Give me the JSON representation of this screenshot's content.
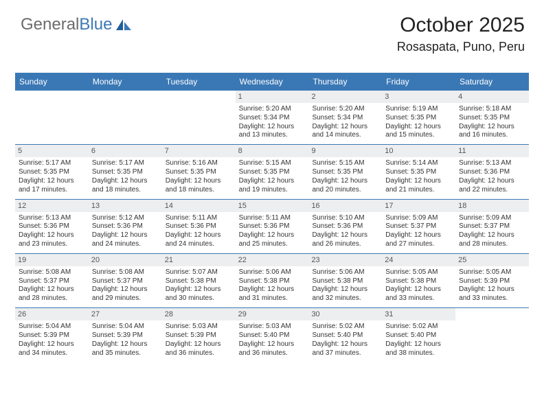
{
  "brand": {
    "part1": "General",
    "part2": "Blue",
    "logo_color": "#3a78b5",
    "text_muted": "#6b6b6b"
  },
  "header": {
    "title": "October 2025",
    "location": "Rosaspata, Puno, Peru"
  },
  "colors": {
    "bar": "#3a78b5",
    "numbg": "#eceef0",
    "text": "#333333",
    "border": "#3a78b5"
  },
  "typography": {
    "title_fontsize": 30,
    "location_fontsize": 18,
    "dow_fontsize": 12,
    "cell_fontsize": 10
  },
  "days_of_week": [
    "Sunday",
    "Monday",
    "Tuesday",
    "Wednesday",
    "Thursday",
    "Friday",
    "Saturday"
  ],
  "layout": {
    "columns": 7,
    "weeks": 5,
    "first_weekday_index": 3
  },
  "cells": [
    {
      "n": "",
      "empty": true
    },
    {
      "n": "",
      "empty": true
    },
    {
      "n": "",
      "empty": true
    },
    {
      "n": "1",
      "sunrise": "5:20 AM",
      "sunset": "5:34 PM",
      "daylight": "12 hours and 13 minutes."
    },
    {
      "n": "2",
      "sunrise": "5:20 AM",
      "sunset": "5:34 PM",
      "daylight": "12 hours and 14 minutes."
    },
    {
      "n": "3",
      "sunrise": "5:19 AM",
      "sunset": "5:35 PM",
      "daylight": "12 hours and 15 minutes."
    },
    {
      "n": "4",
      "sunrise": "5:18 AM",
      "sunset": "5:35 PM",
      "daylight": "12 hours and 16 minutes."
    },
    {
      "n": "5",
      "sunrise": "5:17 AM",
      "sunset": "5:35 PM",
      "daylight": "12 hours and 17 minutes."
    },
    {
      "n": "6",
      "sunrise": "5:17 AM",
      "sunset": "5:35 PM",
      "daylight": "12 hours and 18 minutes."
    },
    {
      "n": "7",
      "sunrise": "5:16 AM",
      "sunset": "5:35 PM",
      "daylight": "12 hours and 18 minutes."
    },
    {
      "n": "8",
      "sunrise": "5:15 AM",
      "sunset": "5:35 PM",
      "daylight": "12 hours and 19 minutes."
    },
    {
      "n": "9",
      "sunrise": "5:15 AM",
      "sunset": "5:35 PM",
      "daylight": "12 hours and 20 minutes."
    },
    {
      "n": "10",
      "sunrise": "5:14 AM",
      "sunset": "5:35 PM",
      "daylight": "12 hours and 21 minutes."
    },
    {
      "n": "11",
      "sunrise": "5:13 AM",
      "sunset": "5:36 PM",
      "daylight": "12 hours and 22 minutes."
    },
    {
      "n": "12",
      "sunrise": "5:13 AM",
      "sunset": "5:36 PM",
      "daylight": "12 hours and 23 minutes."
    },
    {
      "n": "13",
      "sunrise": "5:12 AM",
      "sunset": "5:36 PM",
      "daylight": "12 hours and 24 minutes."
    },
    {
      "n": "14",
      "sunrise": "5:11 AM",
      "sunset": "5:36 PM",
      "daylight": "12 hours and 24 minutes."
    },
    {
      "n": "15",
      "sunrise": "5:11 AM",
      "sunset": "5:36 PM",
      "daylight": "12 hours and 25 minutes."
    },
    {
      "n": "16",
      "sunrise": "5:10 AM",
      "sunset": "5:36 PM",
      "daylight": "12 hours and 26 minutes."
    },
    {
      "n": "17",
      "sunrise": "5:09 AM",
      "sunset": "5:37 PM",
      "daylight": "12 hours and 27 minutes."
    },
    {
      "n": "18",
      "sunrise": "5:09 AM",
      "sunset": "5:37 PM",
      "daylight": "12 hours and 28 minutes."
    },
    {
      "n": "19",
      "sunrise": "5:08 AM",
      "sunset": "5:37 PM",
      "daylight": "12 hours and 28 minutes."
    },
    {
      "n": "20",
      "sunrise": "5:08 AM",
      "sunset": "5:37 PM",
      "daylight": "12 hours and 29 minutes."
    },
    {
      "n": "21",
      "sunrise": "5:07 AM",
      "sunset": "5:38 PM",
      "daylight": "12 hours and 30 minutes."
    },
    {
      "n": "22",
      "sunrise": "5:06 AM",
      "sunset": "5:38 PM",
      "daylight": "12 hours and 31 minutes."
    },
    {
      "n": "23",
      "sunrise": "5:06 AM",
      "sunset": "5:38 PM",
      "daylight": "12 hours and 32 minutes."
    },
    {
      "n": "24",
      "sunrise": "5:05 AM",
      "sunset": "5:38 PM",
      "daylight": "12 hours and 33 minutes."
    },
    {
      "n": "25",
      "sunrise": "5:05 AM",
      "sunset": "5:39 PM",
      "daylight": "12 hours and 33 minutes."
    },
    {
      "n": "26",
      "sunrise": "5:04 AM",
      "sunset": "5:39 PM",
      "daylight": "12 hours and 34 minutes."
    },
    {
      "n": "27",
      "sunrise": "5:04 AM",
      "sunset": "5:39 PM",
      "daylight": "12 hours and 35 minutes."
    },
    {
      "n": "28",
      "sunrise": "5:03 AM",
      "sunset": "5:39 PM",
      "daylight": "12 hours and 36 minutes."
    },
    {
      "n": "29",
      "sunrise": "5:03 AM",
      "sunset": "5:40 PM",
      "daylight": "12 hours and 36 minutes."
    },
    {
      "n": "30",
      "sunrise": "5:02 AM",
      "sunset": "5:40 PM",
      "daylight": "12 hours and 37 minutes."
    },
    {
      "n": "31",
      "sunrise": "5:02 AM",
      "sunset": "5:40 PM",
      "daylight": "12 hours and 38 minutes."
    },
    {
      "n": "",
      "empty": true
    }
  ],
  "labels": {
    "sunrise_prefix": "Sunrise: ",
    "sunset_prefix": "Sunset: ",
    "daylight_prefix": "Daylight: "
  }
}
